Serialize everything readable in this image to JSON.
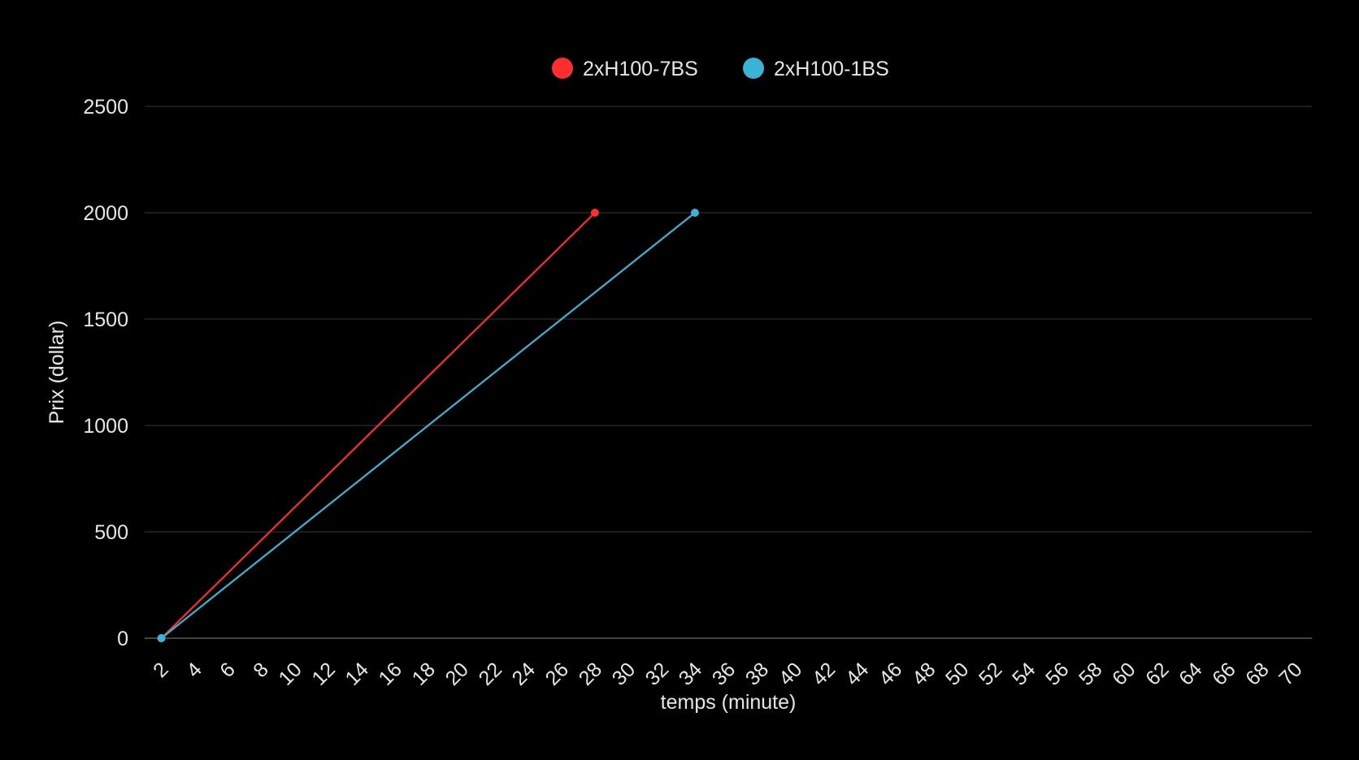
{
  "chart_data": {
    "type": "line",
    "xlabel": "temps (minute)",
    "ylabel": "Prix (dollar)",
    "x_ticks": [
      2,
      4,
      6,
      8,
      10,
      12,
      14,
      16,
      18,
      20,
      22,
      24,
      26,
      28,
      30,
      32,
      34,
      36,
      38,
      40,
      42,
      44,
      46,
      48,
      50,
      52,
      54,
      56,
      58,
      60,
      62,
      64,
      66,
      68,
      70
    ],
    "xlim": [
      1,
      71
    ],
    "y_ticks": [
      0,
      500,
      1000,
      1500,
      2000,
      2500
    ],
    "ylim": [
      0,
      2500
    ],
    "grid": true,
    "legend_position": "top-center",
    "series": [
      {
        "name": "2xH100-7BS",
        "color": "#ff2e2e",
        "points": [
          [
            2,
            0
          ],
          [
            28,
            2000
          ]
        ]
      },
      {
        "name": "2xH100-1BS",
        "color": "#3ab4d6",
        "points": [
          [
            2,
            0
          ],
          [
            34,
            2000
          ]
        ]
      }
    ]
  }
}
